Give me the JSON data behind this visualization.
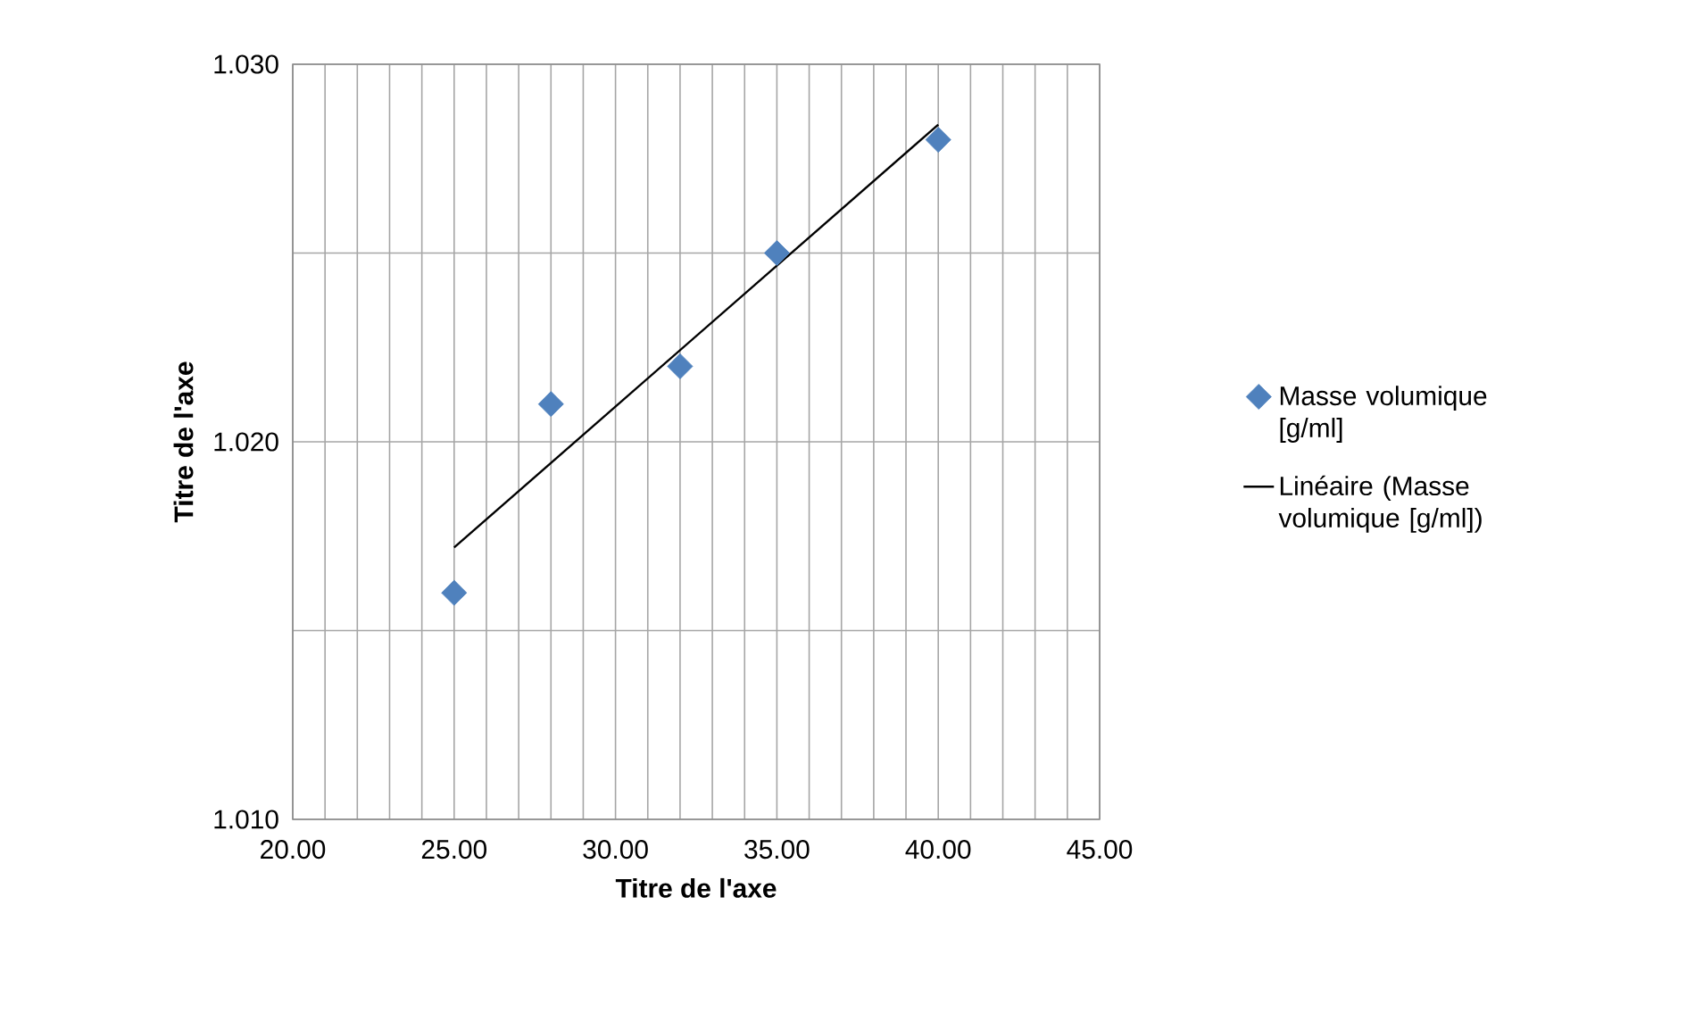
{
  "chart_data": {
    "type": "scatter",
    "xlabel": "Titre de l'axe",
    "ylabel": "Titre de l'axe",
    "xlim": [
      20,
      45
    ],
    "ylim": [
      1.01,
      1.03
    ],
    "xticks": [
      {
        "value": 20,
        "label": "20.00"
      },
      {
        "value": 21,
        "label": null
      },
      {
        "value": 22,
        "label": null
      },
      {
        "value": 23,
        "label": null
      },
      {
        "value": 24,
        "label": null
      },
      {
        "value": 25,
        "label": "25.00"
      },
      {
        "value": 26,
        "label": null
      },
      {
        "value": 27,
        "label": null
      },
      {
        "value": 28,
        "label": null
      },
      {
        "value": 29,
        "label": null
      },
      {
        "value": 30,
        "label": "30.00"
      },
      {
        "value": 31,
        "label": null
      },
      {
        "value": 32,
        "label": null
      },
      {
        "value": 33,
        "label": null
      },
      {
        "value": 34,
        "label": null
      },
      {
        "value": 35,
        "label": "35.00"
      },
      {
        "value": 36,
        "label": null
      },
      {
        "value": 37,
        "label": null
      },
      {
        "value": 38,
        "label": null
      },
      {
        "value": 39,
        "label": null
      },
      {
        "value": 40,
        "label": "40.00"
      },
      {
        "value": 41,
        "label": null
      },
      {
        "value": 42,
        "label": null
      },
      {
        "value": 43,
        "label": null
      },
      {
        "value": 44,
        "label": null
      },
      {
        "value": 45,
        "label": "45.00"
      }
    ],
    "yticks": [
      {
        "value": 1.01,
        "label": "1.010"
      },
      {
        "value": 1.015,
        "label": null
      },
      {
        "value": 1.02,
        "label": "1.020"
      },
      {
        "value": 1.025,
        "label": null
      },
      {
        "value": 1.03,
        "label": "1.030"
      }
    ],
    "grid": true,
    "legend": "right",
    "series": [
      {
        "name": "Masse volumique [g/ml]",
        "marker": "diamond",
        "color": "#4f81bd",
        "x": [
          25,
          28,
          32,
          35,
          40
        ],
        "values": [
          1.016,
          1.021,
          1.022,
          1.025,
          1.028
        ]
      },
      {
        "name": "Linéaire (Masse volumique [g/ml])",
        "type": "line",
        "marker": "none",
        "color": "#000000",
        "x": [
          25,
          40
        ],
        "values": [
          1.0172,
          1.0284
        ]
      }
    ]
  }
}
